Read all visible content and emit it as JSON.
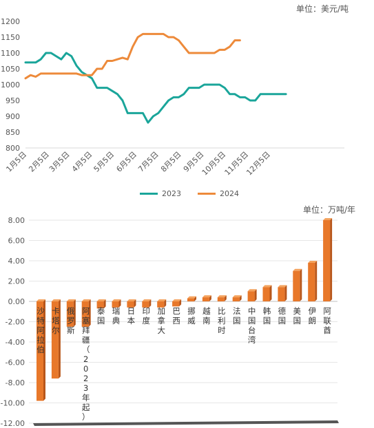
{
  "chart_data": [
    {
      "type": "line",
      "unit_label": "单位：美元/吨",
      "x_tick_labels": [
        "1月5日",
        "2月5日",
        "3月5日",
        "4月5日",
        "5月5日",
        "6月5日",
        "7月5日",
        "8月5日",
        "9月5日",
        "10月5日",
        "11月5日",
        "12月5日"
      ],
      "ylim": [
        800,
        1200
      ],
      "y_ticks": [
        800,
        850,
        900,
        950,
        1000,
        1050,
        1100,
        1150,
        1200
      ],
      "grid": false,
      "legend_position": "bottom",
      "series": [
        {
          "name": "2023",
          "color": "#1aa59a",
          "points": [
            [
              "1月5日",
              1070
            ],
            [
              "1月12日",
              1070
            ],
            [
              "1月19日",
              1070
            ],
            [
              "1月26日",
              1080
            ],
            [
              "2月2日",
              1100
            ],
            [
              "2月9日",
              1100
            ],
            [
              "2月16日",
              1090
            ],
            [
              "2月23日",
              1080
            ],
            [
              "3月2日",
              1100
            ],
            [
              "3月9日",
              1090
            ],
            [
              "3月16日",
              1060
            ],
            [
              "3月23日",
              1040
            ],
            [
              "3月30日",
              1030
            ],
            [
              "4月6日",
              1020
            ],
            [
              "4月13日",
              990
            ],
            [
              "4月20日",
              990
            ],
            [
              "4月27日",
              990
            ],
            [
              "5月4日",
              980
            ],
            [
              "5月11日",
              970
            ],
            [
              "5月18日",
              950
            ],
            [
              "5月25日",
              910
            ],
            [
              "6月1日",
              910
            ],
            [
              "6月8日",
              910
            ],
            [
              "6月15日",
              910
            ],
            [
              "6月22日",
              880
            ],
            [
              "6月29日",
              900
            ],
            [
              "7月6日",
              910
            ],
            [
              "7月13日",
              930
            ],
            [
              "7月20日",
              950
            ],
            [
              "7月27日",
              960
            ],
            [
              "8月3日",
              960
            ],
            [
              "8月10日",
              970
            ],
            [
              "8月17日",
              990
            ],
            [
              "8月24日",
              990
            ],
            [
              "8月31日",
              990
            ],
            [
              "9月7日",
              1000
            ],
            [
              "9月14日",
              1000
            ],
            [
              "9月21日",
              1000
            ],
            [
              "9月28日",
              1000
            ],
            [
              "10月5日",
              990
            ],
            [
              "10月12日",
              970
            ],
            [
              "10月19日",
              970
            ],
            [
              "10月26日",
              960
            ],
            [
              "11月2日",
              960
            ],
            [
              "11月9日",
              950
            ],
            [
              "11月16日",
              950
            ],
            [
              "11月23日",
              970
            ],
            [
              "11月30日",
              970
            ],
            [
              "12月7日",
              970
            ],
            [
              "12月14日",
              970
            ],
            [
              "12月21日",
              970
            ],
            [
              "12月28日",
              970
            ]
          ]
        },
        {
          "name": "2024",
          "color": "#ed8a3a",
          "points": [
            [
              "1月5日",
              1020
            ],
            [
              "1月12日",
              1030
            ],
            [
              "1月19日",
              1025
            ],
            [
              "1月26日",
              1035
            ],
            [
              "2月2日",
              1035
            ],
            [
              "2月9日",
              1035
            ],
            [
              "2月16日",
              1035
            ],
            [
              "2月23日",
              1035
            ],
            [
              "3月2日",
              1035
            ],
            [
              "3月9日",
              1035
            ],
            [
              "3月16日",
              1035
            ],
            [
              "3月23日",
              1030
            ],
            [
              "3月30日",
              1030
            ],
            [
              "4月6日",
              1030
            ],
            [
              "4月13日",
              1050
            ],
            [
              "4月20日",
              1050
            ],
            [
              "4月27日",
              1075
            ],
            [
              "5月4日",
              1075
            ],
            [
              "5月11日",
              1080
            ],
            [
              "5月18日",
              1085
            ],
            [
              "5月25日",
              1080
            ],
            [
              "6月1日",
              1120
            ],
            [
              "6月8日",
              1150
            ],
            [
              "6月15日",
              1160
            ],
            [
              "6月22日",
              1160
            ],
            [
              "6月29日",
              1160
            ],
            [
              "7月6日",
              1160
            ],
            [
              "7月13日",
              1160
            ],
            [
              "7月20日",
              1150
            ],
            [
              "7月27日",
              1150
            ],
            [
              "8月3日",
              1140
            ],
            [
              "8月10日",
              1120
            ],
            [
              "8月17日",
              1100
            ],
            [
              "8月24日",
              1100
            ],
            [
              "8月31日",
              1100
            ],
            [
              "9月7日",
              1100
            ],
            [
              "9月14日",
              1100
            ],
            [
              "9月21日",
              1100
            ],
            [
              "9月28日",
              1110
            ],
            [
              "10月5日",
              1110
            ],
            [
              "10月12日",
              1120
            ],
            [
              "10月19日",
              1140
            ],
            [
              "10月26日",
              1140
            ]
          ]
        }
      ]
    },
    {
      "type": "bar",
      "unit_label": "单位：万吨/年",
      "ylim": [
        -12,
        8
      ],
      "y_ticks": [
        8.0,
        6.0,
        4.0,
        2.0,
        0.0,
        -2.0,
        -4.0,
        -6.0,
        -8.0,
        -10.0,
        -12.0
      ],
      "bar_color": "#e8782a",
      "grid": true,
      "categories": [
        "沙特阿拉伯",
        "卡塔尔",
        "俄罗斯",
        "阿塞拜疆（2023年起）",
        "泰国",
        "瑞典",
        "日本",
        "印度",
        "加拿大",
        "巴西",
        "挪威",
        "越南",
        "比利时",
        "法国",
        "中国台湾",
        "韩国",
        "德国",
        "美国",
        "伊朗",
        "阿联酋"
      ],
      "values": [
        -9.8,
        -7.6,
        -2.5,
        -2.5,
        -0.7,
        -0.6,
        -0.6,
        -0.6,
        -0.6,
        -0.5,
        0.3,
        0.4,
        0.4,
        0.4,
        1.0,
        1.4,
        1.4,
        3.0,
        3.8,
        8.0
      ]
    }
  ]
}
